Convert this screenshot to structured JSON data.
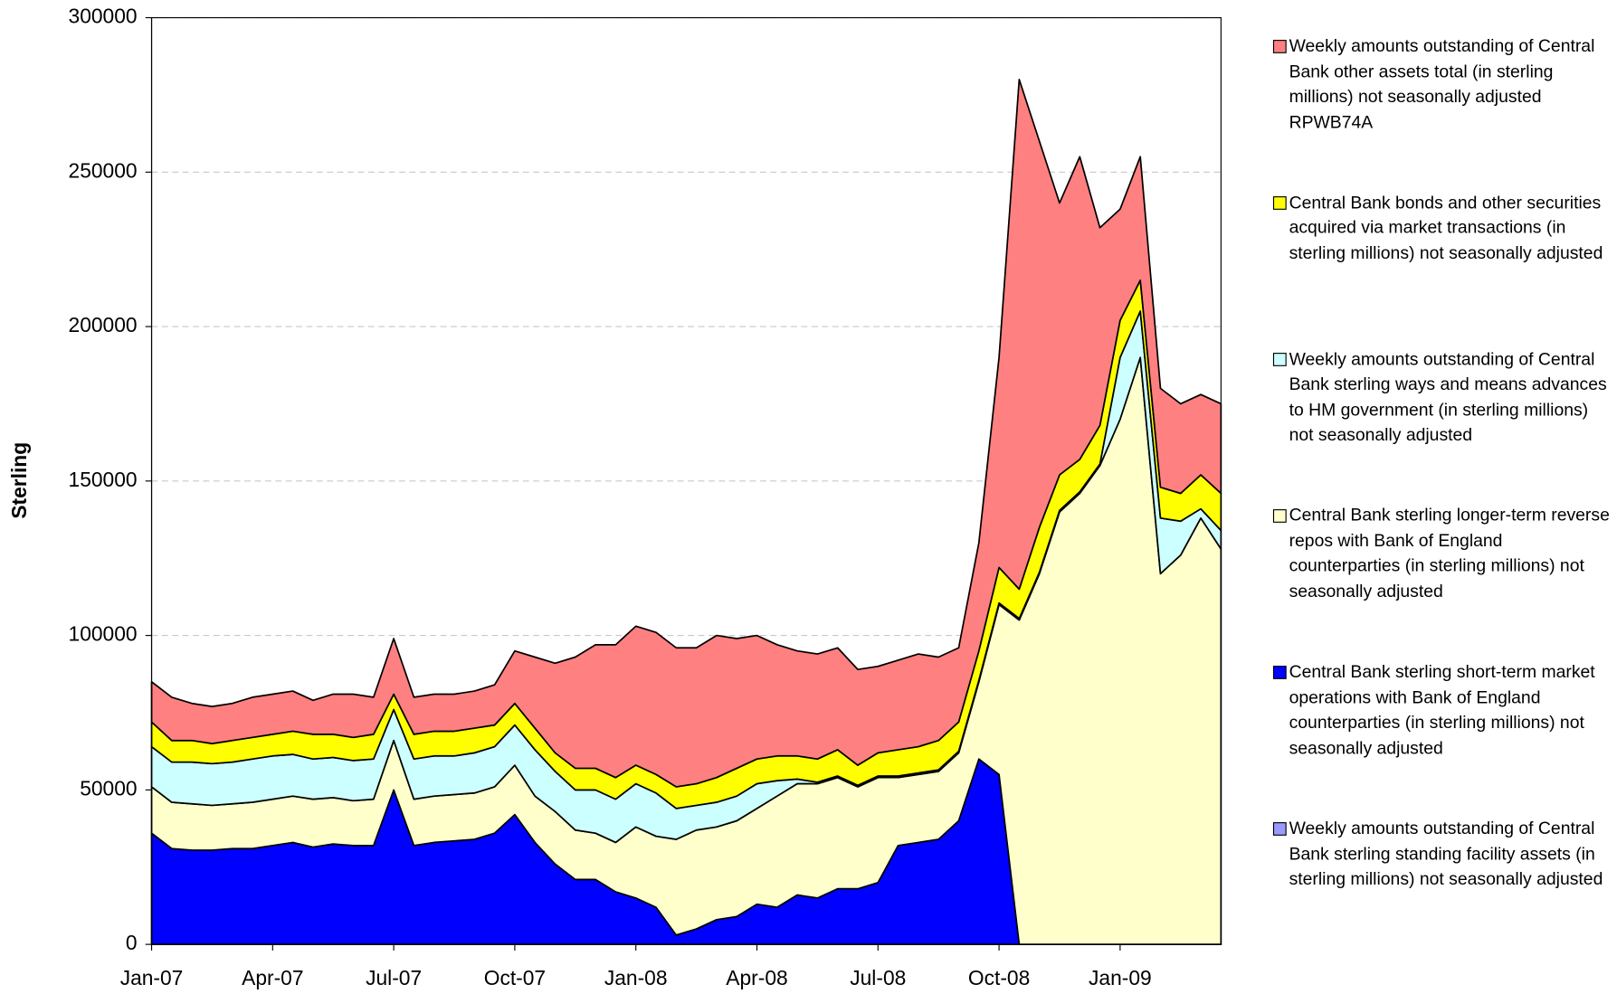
{
  "chart_data": {
    "type": "stacked_area",
    "y_label": "Sterling",
    "categories": [
      "Jan-07",
      null,
      null,
      null,
      null,
      null,
      "Apr-07",
      null,
      null,
      null,
      null,
      null,
      "Jul-07",
      null,
      null,
      null,
      null,
      null,
      "Oct-07",
      null,
      null,
      null,
      null,
      null,
      "Jan-08",
      null,
      null,
      null,
      null,
      null,
      "Apr-08",
      null,
      null,
      null,
      null,
      null,
      "Jul-08",
      null,
      null,
      null,
      null,
      null,
      "Oct-08",
      null,
      null,
      null,
      null,
      null,
      "Jan-09",
      null,
      null,
      null,
      null,
      null
    ],
    "ylim": [
      0,
      300000
    ],
    "yticks": [
      0,
      50000,
      100000,
      150000,
      200000,
      250000,
      300000
    ],
    "grid": true,
    "legend": "right",
    "series": [
      {
        "name": "Weekly amounts outstanding of Central Bank sterling standing facility assets (in sterling millions) not seasonally adjusted",
        "color": "#9999ff",
        "values": [
          0,
          0,
          0,
          0,
          0,
          0,
          0,
          0,
          0,
          0,
          0,
          0,
          0,
          0,
          0,
          0,
          0,
          0,
          0,
          0,
          0,
          0,
          0,
          0,
          0,
          0,
          0,
          0,
          0,
          0,
          0,
          0,
          0,
          0,
          0,
          0,
          0,
          0,
          0,
          0,
          0,
          0,
          0,
          0,
          0,
          0,
          0,
          0,
          0,
          0,
          0,
          0,
          0,
          0
        ]
      },
      {
        "name": "Central Bank sterling short-term market operations with Bank of England counterparties (in sterling millions) not seasonally adjusted",
        "color": "#0000ff",
        "values": [
          36000,
          31000,
          30500,
          30500,
          31000,
          31000,
          32000,
          33000,
          31500,
          32500,
          32000,
          32000,
          50000,
          32000,
          33000,
          33500,
          34000,
          36000,
          42000,
          33000,
          26000,
          21000,
          21000,
          17000,
          15000,
          12000,
          3000,
          5000,
          8000,
          9000,
          13000,
          12000,
          16000,
          15000,
          18000,
          18000,
          20000,
          32000,
          33000,
          34000,
          40000,
          60000,
          55000,
          0,
          0,
          0,
          0,
          0,
          0,
          0,
          0,
          0,
          0,
          0
        ]
      },
      {
        "name": "Central Bank sterling longer-term reverse repos with Bank of England counterparties (in sterling millions) not seasonally adjusted",
        "color": "#ffffcc",
        "values": [
          15000,
          15000,
          15000,
          14500,
          14500,
          15000,
          15000,
          15000,
          15500,
          15000,
          14500,
          15000,
          16000,
          15000,
          15000,
          15000,
          15000,
          15000,
          16000,
          15000,
          17000,
          16000,
          15000,
          16000,
          23000,
          23000,
          31000,
          32000,
          30000,
          31000,
          31000,
          36000,
          36000,
          37000,
          36000,
          33000,
          34000,
          22000,
          22000,
          22000,
          22000,
          25000,
          55000,
          105000,
          120000,
          140000,
          146000,
          155000,
          170000,
          190000,
          120000,
          126000,
          138000,
          128000
        ]
      },
      {
        "name": "Weekly amounts outstanding of Central Bank sterling ways and means advances to HM government (in sterling millions) not seasonally adjusted",
        "color": "#ccffff",
        "values": [
          13000,
          13000,
          13500,
          13500,
          13500,
          14000,
          14000,
          13500,
          13000,
          13000,
          13000,
          13000,
          10000,
          13000,
          13000,
          12500,
          13000,
          13000,
          13000,
          15000,
          13000,
          13000,
          14000,
          14000,
          14000,
          14000,
          10000,
          8000,
          8000,
          8000,
          8000,
          5000,
          1500,
          500,
          500,
          500,
          500,
          500,
          500,
          500,
          500,
          500,
          500,
          500,
          500,
          500,
          500,
          500,
          20000,
          15000,
          18000,
          11000,
          3000,
          6000
        ]
      },
      {
        "name": "Central Bank bonds and other securities acquired via market transactions (in sterling millions) not seasonally adjusted",
        "color": "#ffff00",
        "values": [
          8000,
          7000,
          7000,
          6500,
          7000,
          7000,
          7000,
          7500,
          8000,
          7500,
          7500,
          8000,
          5000,
          8000,
          8000,
          8000,
          8000,
          7000,
          7000,
          7000,
          6000,
          7000,
          7000,
          7000,
          6000,
          6000,
          7000,
          7000,
          8000,
          9000,
          8000,
          8000,
          7500,
          7500,
          8500,
          6500,
          7500,
          8500,
          8500,
          9500,
          9500,
          9500,
          11500,
          9500,
          14500,
          11500,
          10500,
          12500,
          12000,
          10000,
          10000,
          9000,
          11000,
          12000
        ]
      },
      {
        "name": "Weekly amounts outstanding of Central Bank other assets total (in sterling millions) not seasonally adjusted RPWB74A",
        "color": "#ff8080",
        "values": [
          13000,
          14000,
          12000,
          12000,
          12000,
          13000,
          13000,
          13000,
          11000,
          13000,
          14000,
          12000,
          18000,
          12000,
          12000,
          12000,
          12000,
          13000,
          17000,
          23000,
          29000,
          36000,
          40000,
          43000,
          45000,
          46000,
          45000,
          44000,
          46000,
          42000,
          40000,
          36000,
          34000,
          34000,
          33000,
          31000,
          28000,
          29000,
          30000,
          27000,
          24000,
          35000,
          68000,
          165000,
          125000,
          88000,
          98000,
          64000,
          36000,
          40000,
          32000,
          29000,
          26000,
          29000
        ]
      }
    ]
  }
}
